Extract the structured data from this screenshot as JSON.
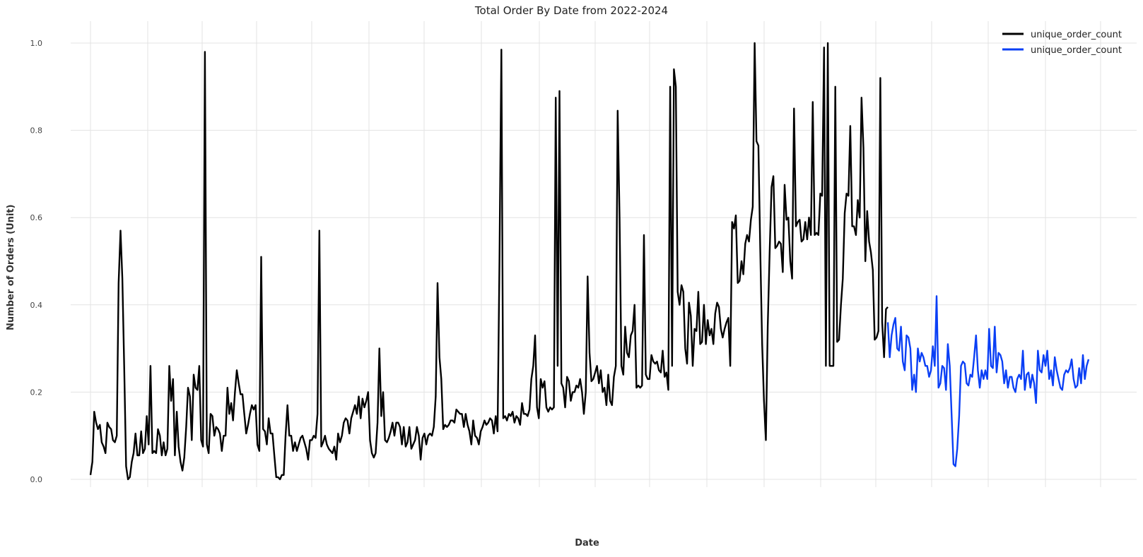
{
  "chart_data": {
    "type": "line",
    "title": "Total Order By Date from 2022-2024",
    "xlabel": "Date",
    "ylabel": "Number of Orders (Unit)",
    "ylim": [
      0,
      1.0
    ],
    "y_ticks": [
      "0.0",
      "0.2",
      "0.4",
      "0.6",
      "0.8",
      "1.0"
    ],
    "grid": true,
    "legend_position": "top-right",
    "series": [
      {
        "name": "unique_order_count",
        "color": "#000000",
        "values": [
          0.01,
          0.04,
          0.155,
          0.13,
          0.115,
          0.125,
          0.085,
          0.075,
          0.06,
          0.13,
          0.12,
          0.115,
          0.09,
          0.085,
          0.1,
          0.45,
          0.57,
          0.46,
          0.25,
          0.03,
          0.0,
          0.005,
          0.04,
          0.06,
          0.105,
          0.055,
          0.055,
          0.11,
          0.06,
          0.07,
          0.145,
          0.08,
          0.26,
          0.06,
          0.065,
          0.06,
          0.115,
          0.1,
          0.055,
          0.085,
          0.055,
          0.07,
          0.26,
          0.18,
          0.23,
          0.055,
          0.155,
          0.075,
          0.04,
          0.02,
          0.05,
          0.12,
          0.21,
          0.19,
          0.09,
          0.24,
          0.21,
          0.205,
          0.26,
          0.09,
          0.075,
          0.98,
          0.08,
          0.06,
          0.15,
          0.145,
          0.1,
          0.12,
          0.115,
          0.105,
          0.065,
          0.1,
          0.1,
          0.21,
          0.15,
          0.175,
          0.135,
          0.2,
          0.25,
          0.22,
          0.195,
          0.195,
          0.15,
          0.105,
          0.125,
          0.15,
          0.17,
          0.16,
          0.17,
          0.08,
          0.065,
          0.51,
          0.115,
          0.11,
          0.08,
          0.14,
          0.105,
          0.105,
          0.055,
          0.005,
          0.005,
          0.0,
          0.01,
          0.01,
          0.1,
          0.17,
          0.1,
          0.1,
          0.065,
          0.085,
          0.065,
          0.08,
          0.095,
          0.1,
          0.085,
          0.07,
          0.045,
          0.09,
          0.09,
          0.1,
          0.095,
          0.15,
          0.57,
          0.075,
          0.085,
          0.1,
          0.08,
          0.07,
          0.065,
          0.06,
          0.075,
          0.045,
          0.105,
          0.085,
          0.1,
          0.13,
          0.14,
          0.135,
          0.105,
          0.14,
          0.155,
          0.17,
          0.15,
          0.19,
          0.14,
          0.185,
          0.165,
          0.18,
          0.2,
          0.09,
          0.06,
          0.05,
          0.06,
          0.13,
          0.3,
          0.145,
          0.2,
          0.09,
          0.085,
          0.095,
          0.11,
          0.13,
          0.1,
          0.13,
          0.13,
          0.12,
          0.08,
          0.12,
          0.075,
          0.085,
          0.12,
          0.07,
          0.08,
          0.09,
          0.12,
          0.1,
          0.045,
          0.095,
          0.105,
          0.08,
          0.1,
          0.105,
          0.1,
          0.12,
          0.19,
          0.45,
          0.28,
          0.23,
          0.115,
          0.125,
          0.12,
          0.125,
          0.135,
          0.135,
          0.13,
          0.16,
          0.155,
          0.15,
          0.15,
          0.12,
          0.15,
          0.125,
          0.11,
          0.08,
          0.135,
          0.1,
          0.095,
          0.08,
          0.11,
          0.12,
          0.135,
          0.125,
          0.13,
          0.14,
          0.135,
          0.105,
          0.145,
          0.11,
          0.5,
          0.985,
          0.14,
          0.145,
          0.135,
          0.15,
          0.145,
          0.155,
          0.13,
          0.145,
          0.14,
          0.125,
          0.175,
          0.15,
          0.15,
          0.145,
          0.16,
          0.23,
          0.26,
          0.33,
          0.165,
          0.14,
          0.23,
          0.21,
          0.225,
          0.165,
          0.155,
          0.165,
          0.16,
          0.165,
          0.875,
          0.26,
          0.89,
          0.22,
          0.21,
          0.165,
          0.235,
          0.225,
          0.18,
          0.2,
          0.2,
          0.215,
          0.21,
          0.23,
          0.2,
          0.15,
          0.2,
          0.465,
          0.29,
          0.225,
          0.23,
          0.245,
          0.26,
          0.22,
          0.25,
          0.2,
          0.21,
          0.17,
          0.24,
          0.18,
          0.17,
          0.235,
          0.26,
          0.845,
          0.6,
          0.26,
          0.24,
          0.35,
          0.29,
          0.28,
          0.33,
          0.34,
          0.4,
          0.21,
          0.215,
          0.21,
          0.215,
          0.56,
          0.24,
          0.23,
          0.23,
          0.285,
          0.27,
          0.265,
          0.27,
          0.25,
          0.245,
          0.295,
          0.235,
          0.245,
          0.205,
          0.9,
          0.26,
          0.94,
          0.9,
          0.43,
          0.4,
          0.445,
          0.43,
          0.3,
          0.265,
          0.405,
          0.375,
          0.26,
          0.345,
          0.34,
          0.43,
          0.31,
          0.315,
          0.4,
          0.31,
          0.365,
          0.33,
          0.345,
          0.31,
          0.38,
          0.405,
          0.395,
          0.345,
          0.325,
          0.345,
          0.36,
          0.37,
          0.26,
          0.59,
          0.575,
          0.605,
          0.45,
          0.455,
          0.5,
          0.47,
          0.54,
          0.56,
          0.545,
          0.595,
          0.625,
          1.0,
          0.775,
          0.765,
          0.53,
          0.31,
          0.18,
          0.09,
          0.35,
          0.52,
          0.67,
          0.695,
          0.53,
          0.535,
          0.545,
          0.54,
          0.475,
          0.675,
          0.595,
          0.6,
          0.5,
          0.46,
          0.85,
          0.58,
          0.59,
          0.595,
          0.545,
          0.55,
          0.59,
          0.55,
          0.6,
          0.56,
          0.865,
          0.56,
          0.565,
          0.56,
          0.655,
          0.65,
          0.99,
          0.26,
          1.0,
          0.26,
          0.26,
          0.26,
          0.9,
          0.315,
          0.32,
          0.4,
          0.46,
          0.61,
          0.655,
          0.65,
          0.81,
          0.58,
          0.58,
          0.56,
          0.64,
          0.6,
          0.875,
          0.76,
          0.5,
          0.615,
          0.545,
          0.52,
          0.48,
          0.32,
          0.325,
          0.34,
          0.92,
          0.36,
          0.28,
          0.39,
          0.395
        ]
      },
      {
        "name": "unique_order_count",
        "color": "#0a3ff5",
        "values": [
          0.36,
          0.28,
          0.33,
          0.355,
          0.37,
          0.3,
          0.295,
          0.35,
          0.27,
          0.25,
          0.33,
          0.325,
          0.3,
          0.205,
          0.24,
          0.2,
          0.3,
          0.27,
          0.29,
          0.28,
          0.26,
          0.26,
          0.235,
          0.25,
          0.305,
          0.26,
          0.42,
          0.21,
          0.22,
          0.26,
          0.255,
          0.205,
          0.31,
          0.26,
          0.15,
          0.035,
          0.03,
          0.07,
          0.145,
          0.26,
          0.27,
          0.265,
          0.22,
          0.215,
          0.24,
          0.235,
          0.28,
          0.33,
          0.25,
          0.21,
          0.25,
          0.23,
          0.25,
          0.23,
          0.345,
          0.26,
          0.255,
          0.35,
          0.245,
          0.29,
          0.285,
          0.27,
          0.22,
          0.25,
          0.21,
          0.235,
          0.235,
          0.21,
          0.2,
          0.23,
          0.24,
          0.23,
          0.295,
          0.205,
          0.24,
          0.245,
          0.21,
          0.24,
          0.22,
          0.175,
          0.295,
          0.25,
          0.245,
          0.285,
          0.26,
          0.295,
          0.23,
          0.25,
          0.215,
          0.28,
          0.25,
          0.23,
          0.21,
          0.205,
          0.24,
          0.25,
          0.245,
          0.255,
          0.275,
          0.23,
          0.21,
          0.215,
          0.255,
          0.22,
          0.285,
          0.23,
          0.26,
          0.275
        ]
      }
    ]
  }
}
